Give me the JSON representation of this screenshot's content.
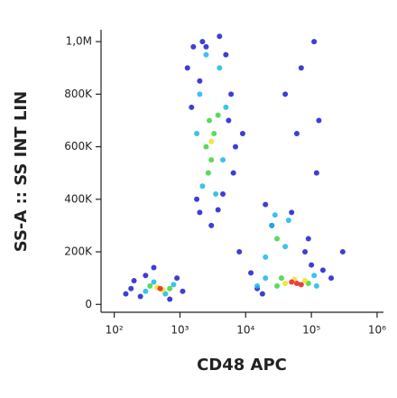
{
  "chart_data": {
    "type": "scatter",
    "x_label": "CD48 APC",
    "y_label": "SS-A :: SS INT LIN",
    "xscale": "log",
    "xlim": [
      63,
      1250000
    ],
    "xticks": [
      {
        "value": 100,
        "label": "10²"
      },
      {
        "value": 1000,
        "label": "10³"
      },
      {
        "value": 10000,
        "label": "10⁴"
      },
      {
        "value": 100000,
        "label": "10⁵"
      },
      {
        "value": 1000000,
        "label": "10⁶"
      }
    ],
    "ylim": [
      -30000,
      1045000
    ],
    "yticks": [
      0,
      {
        "value": 200000,
        "label": "200K"
      },
      {
        "value": 400000,
        "label": "400K"
      },
      {
        "value": 600000,
        "label": "600K"
      },
      {
        "value": 800000,
        "label": "800K"
      },
      {
        "value": 1000000,
        "label": "1,0M"
      }
    ],
    "series": [
      {
        "color": "#1c1ccc",
        "x": [
          150,
          200,
          250,
          300,
          900,
          1100,
          180,
          1300,
          1600,
          1800,
          2000,
          5000,
          6000,
          4500,
          7000,
          1500,
          2200,
          4000,
          6500,
          3800,
          5500,
          2000,
          12000,
          15000,
          20000,
          50000,
          80000,
          100000,
          150000,
          200000,
          120000,
          60000,
          40000,
          25000,
          18000,
          70000,
          90000,
          110000,
          300000,
          130000,
          8000,
          9000,
          3000,
          2500,
          400,
          700
        ],
        "y": [
          40000,
          90000,
          30000,
          110000,
          100000,
          50000,
          60000,
          900000,
          980000,
          400000,
          350000,
          950000,
          800000,
          420000,
          600000,
          750000,
          1000000,
          1020000,
          500000,
          360000,
          700000,
          850000,
          120000,
          60000,
          380000,
          350000,
          200000,
          150000,
          130000,
          100000,
          500000,
          650000,
          800000,
          300000,
          40000,
          900000,
          250000,
          1000000,
          200000,
          700000,
          200000,
          650000,
          300000,
          980000,
          140000,
          20000
        ]
      },
      {
        "color": "#18b8e8",
        "x": [
          300,
          400,
          800,
          600,
          2000,
          4000,
          4500,
          2200,
          3500,
          1800,
          5000,
          2500,
          25000,
          40000,
          20000,
          45000,
          15000,
          120000,
          110000,
          20000,
          28000
        ],
        "y": [
          50000,
          85000,
          75000,
          40000,
          800000,
          900000,
          550000,
          450000,
          420000,
          650000,
          750000,
          950000,
          300000,
          220000,
          180000,
          320000,
          70000,
          70000,
          110000,
          100000,
          340000
        ]
      },
      {
        "color": "#3ed43e",
        "x": [
          350,
          700,
          3000,
          2800,
          3300,
          2500,
          3800,
          2700,
          30000,
          35000,
          90000,
          30000
        ],
        "y": [
          70000,
          60000,
          550000,
          700000,
          650000,
          600000,
          720000,
          500000,
          250000,
          100000,
          80000,
          70000
        ]
      },
      {
        "color": "#f0e020",
        "x": [
          450,
          550,
          55000,
          80000,
          40000,
          3000
        ],
        "y": [
          65000,
          55000,
          95000,
          90000,
          80000,
          620000
        ]
      },
      {
        "color": "#e82020",
        "x": [
          500,
          60000,
          70000,
          50000
        ],
        "y": [
          60000,
          80000,
          75000,
          85000
        ]
      }
    ]
  }
}
